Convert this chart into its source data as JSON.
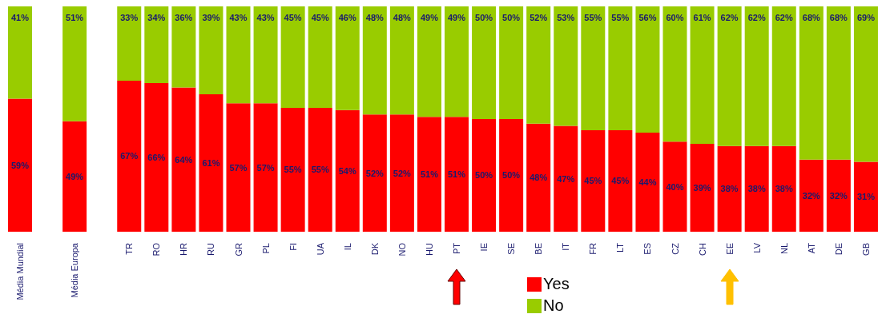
{
  "chart_data": {
    "type": "bar",
    "stacked": true,
    "legend": "bottom",
    "categories": [
      "Média Mundial",
      null,
      "Média Europa",
      null,
      "TR",
      "RO",
      "HR",
      "RU",
      "GR",
      "PL",
      "FI",
      "UA",
      "IL",
      "DK",
      "NO",
      "HU",
      "PT",
      "IE",
      "SE",
      "BE",
      "IT",
      "FR",
      "LT",
      "ES",
      "CZ",
      "CH",
      "EE",
      "LV",
      "NL",
      "AT",
      "DE",
      "GB"
    ],
    "series": [
      {
        "name": "Yes",
        "color": "#ff0000",
        "values": [
          59,
          null,
          49,
          null,
          67,
          66,
          64,
          61,
          57,
          57,
          55,
          55,
          54,
          52,
          52,
          51,
          51,
          50,
          50,
          48,
          47,
          45,
          45,
          44,
          40,
          39,
          38,
          38,
          38,
          32,
          32,
          31
        ],
        "value_labels": [
          "59%",
          null,
          "49%",
          null,
          "67%",
          "66%",
          "64%",
          "61%",
          "57%",
          "57%",
          "55%",
          "55%",
          "54%",
          "52%",
          "52%",
          "51%",
          "51%",
          "50%",
          "50%",
          "48%",
          "47%",
          "45%",
          "45%",
          "44%",
          "40%",
          "39%",
          "38%",
          "38%",
          "38%",
          "32%",
          "32%",
          "31%"
        ]
      },
      {
        "name": "No",
        "color": "#99cc00",
        "values": [
          41,
          null,
          51,
          null,
          33,
          34,
          36,
          39,
          43,
          43,
          45,
          45,
          46,
          48,
          48,
          49,
          49,
          50,
          50,
          52,
          53,
          55,
          55,
          56,
          60,
          61,
          62,
          62,
          62,
          68,
          68,
          69
        ],
        "value_labels": [
          "41%",
          null,
          "51%",
          null,
          "33%",
          "34%",
          "36%",
          "39%",
          "43%",
          "43%",
          "45%",
          "45%",
          "46%",
          "48%",
          "48%",
          "49%",
          "49%",
          "50%",
          "50%",
          "52%",
          "53%",
          "55%",
          "55%",
          "56%",
          "60%",
          "61%",
          "62%",
          "62%",
          "62%",
          "68%",
          "68%",
          "69%"
        ]
      }
    ]
  }
}
